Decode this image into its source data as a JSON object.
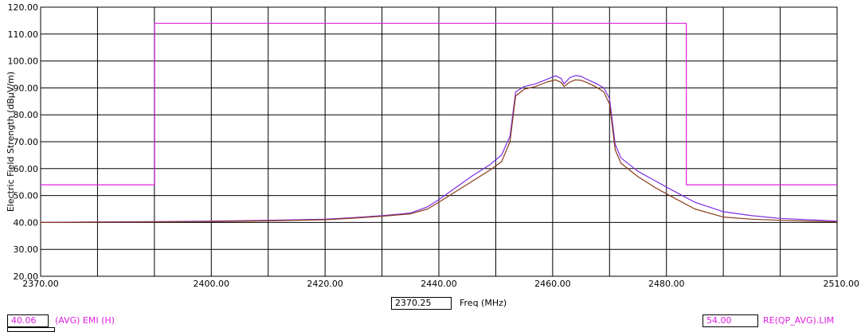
{
  "chart_data": {
    "type": "line",
    "title": "",
    "xlabel": "Freq (MHz)",
    "ylabel": "Electric Field Strength (dBµV/m)",
    "xlim": [
      2370,
      2510
    ],
    "ylim": [
      20,
      120
    ],
    "x_ticks": [
      "2370.00",
      "2400.00",
      "2420.00",
      "2440.00",
      "2460.00",
      "2480.00",
      "2510.00"
    ],
    "x_tick_values": [
      2370,
      2400,
      2420,
      2440,
      2460,
      2480,
      2510
    ],
    "x_grid_values": [
      2370,
      2380,
      2390,
      2400,
      2410,
      2420,
      2430,
      2440,
      2450,
      2460,
      2470,
      2480,
      2490,
      2500,
      2510
    ],
    "y_ticks": [
      "120.00",
      "110.00",
      "100.00",
      "90.00",
      "80.00",
      "70.00",
      "60.00",
      "50.00",
      "40.00",
      "30.00",
      "20.00"
    ],
    "grid": true,
    "series": [
      {
        "color": "#e020e0",
        "x": [
          2370,
          2390.05,
          2390.05,
          2483.5,
          2483.5,
          2510
        ],
        "y": [
          54,
          54,
          114,
          114,
          54,
          54
        ]
      },
      {
        "color": "#7a2ee6",
        "x": [
          2370,
          2380,
          2390,
          2400,
          2410,
          2420,
          2425,
          2430,
          2435,
          2438,
          2440,
          2443,
          2446,
          2449,
          2451,
          2452.5,
          2453.5,
          2455,
          2457,
          2459,
          2460.5,
          2461.5,
          2462,
          2463,
          2464,
          2465,
          2466,
          2467.5,
          2469,
          2470,
          2471,
          2472,
          2475,
          2478,
          2481,
          2485,
          2490,
          2495,
          2500,
          2510
        ],
        "y": [
          40,
          40.2,
          40.3,
          40.5,
          40.8,
          41.2,
          41.8,
          42.5,
          43.5,
          45.8,
          48.5,
          53,
          57.5,
          61.5,
          65,
          72,
          88.5,
          90.5,
          91.5,
          93.2,
          94.5,
          93.5,
          91.5,
          93.8,
          94.6,
          94.3,
          93.2,
          91.8,
          90,
          86,
          69,
          64,
          59,
          55.5,
          52,
          47.5,
          44,
          42.5,
          41.5,
          40.5
        ]
      },
      {
        "color": "#8b3a1a",
        "x": [
          2370,
          2380,
          2390,
          2400,
          2410,
          2420,
          2425,
          2430,
          2435,
          2438,
          2440,
          2443,
          2446,
          2449,
          2451,
          2452.5,
          2453.5,
          2455,
          2457,
          2459,
          2460.5,
          2461.5,
          2462,
          2463,
          2464,
          2465,
          2466,
          2467.5,
          2469,
          2470,
          2471,
          2472,
          2475,
          2478,
          2481,
          2485,
          2490,
          2495,
          2500,
          2510
        ],
        "y": [
          40,
          40.1,
          40.2,
          40.3,
          40.6,
          41,
          41.6,
          42.3,
          43.2,
          45,
          47.5,
          51.5,
          55.5,
          59.5,
          62.5,
          70,
          87,
          89.5,
          90.5,
          92.2,
          93,
          92,
          90.5,
          92.2,
          93,
          92.8,
          92,
          90.5,
          88.5,
          84,
          67,
          62,
          57,
          53,
          49.5,
          45,
          42,
          41.2,
          40.8,
          40.2
        ]
      }
    ],
    "cursor_x": "2370.25"
  },
  "cursors": {
    "left_value": "40.06",
    "left_label": "(AVG) EMI (H)",
    "right_value": "54.00",
    "right_label": "RE(QP_AVG).LIM"
  }
}
